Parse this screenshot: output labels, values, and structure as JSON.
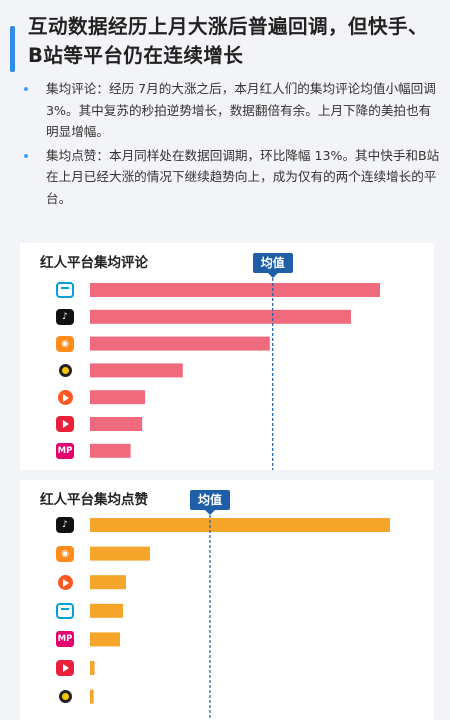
{
  "header": {
    "title": "互动数据经历上月大涨后普遍回调，但快手、B站等平台仍在连续增长"
  },
  "bullets": [
    "集均评论：经历 7月的大涨之后，本月红人们的集均评论均值小幅回调 3%。其中复苏的秒拍逆势增长，数据翻倍有余。上月下降的美拍也有明显增幅。",
    "集均点赞：本月同样处在数据回调期，环比降幅 13%。其中快手和B站在上月已经大涨的情况下继续趋势向上，成为仅有的两个连续增长的平台。"
  ],
  "colors": {
    "accent": "#2f8de4",
    "comment_bar": "#f06a7e",
    "like_bar": "#f5a52a",
    "avg_tag": "#1f5fa8"
  },
  "chart_data": [
    {
      "type": "bar",
      "orientation": "horizontal",
      "title": "红人平台集均评论",
      "categories": [
        "bilibili-icon",
        "douyin-icon",
        "kuaishou-icon",
        "weishi-icon",
        "huoshan-icon",
        "miaopai-icon",
        "meipai-icon"
      ],
      "category_labels": [
        "",
        "",
        "",
        "",
        "",
        "",
        ""
      ],
      "values": [
        100,
        90,
        62,
        32,
        19,
        18,
        14
      ],
      "xlim": [
        0,
        100
      ],
      "average": 63,
      "average_label": "均值",
      "grid": false
    },
    {
      "type": "bar",
      "orientation": "horizontal",
      "title": "红人平台集均点赞",
      "categories": [
        "douyin-icon",
        "kuaishou-icon",
        "huoshan-icon",
        "bilibili-icon",
        "meipai-icon",
        "miaopai-icon",
        "weishi-icon"
      ],
      "category_labels": [
        "",
        "",
        "",
        "",
        "",
        "",
        ""
      ],
      "values": [
        100,
        20,
        12,
        11,
        10,
        1.5,
        1.2
      ],
      "xlim": [
        0,
        100
      ],
      "average": 40,
      "average_label": "均值",
      "grid": false
    }
  ]
}
